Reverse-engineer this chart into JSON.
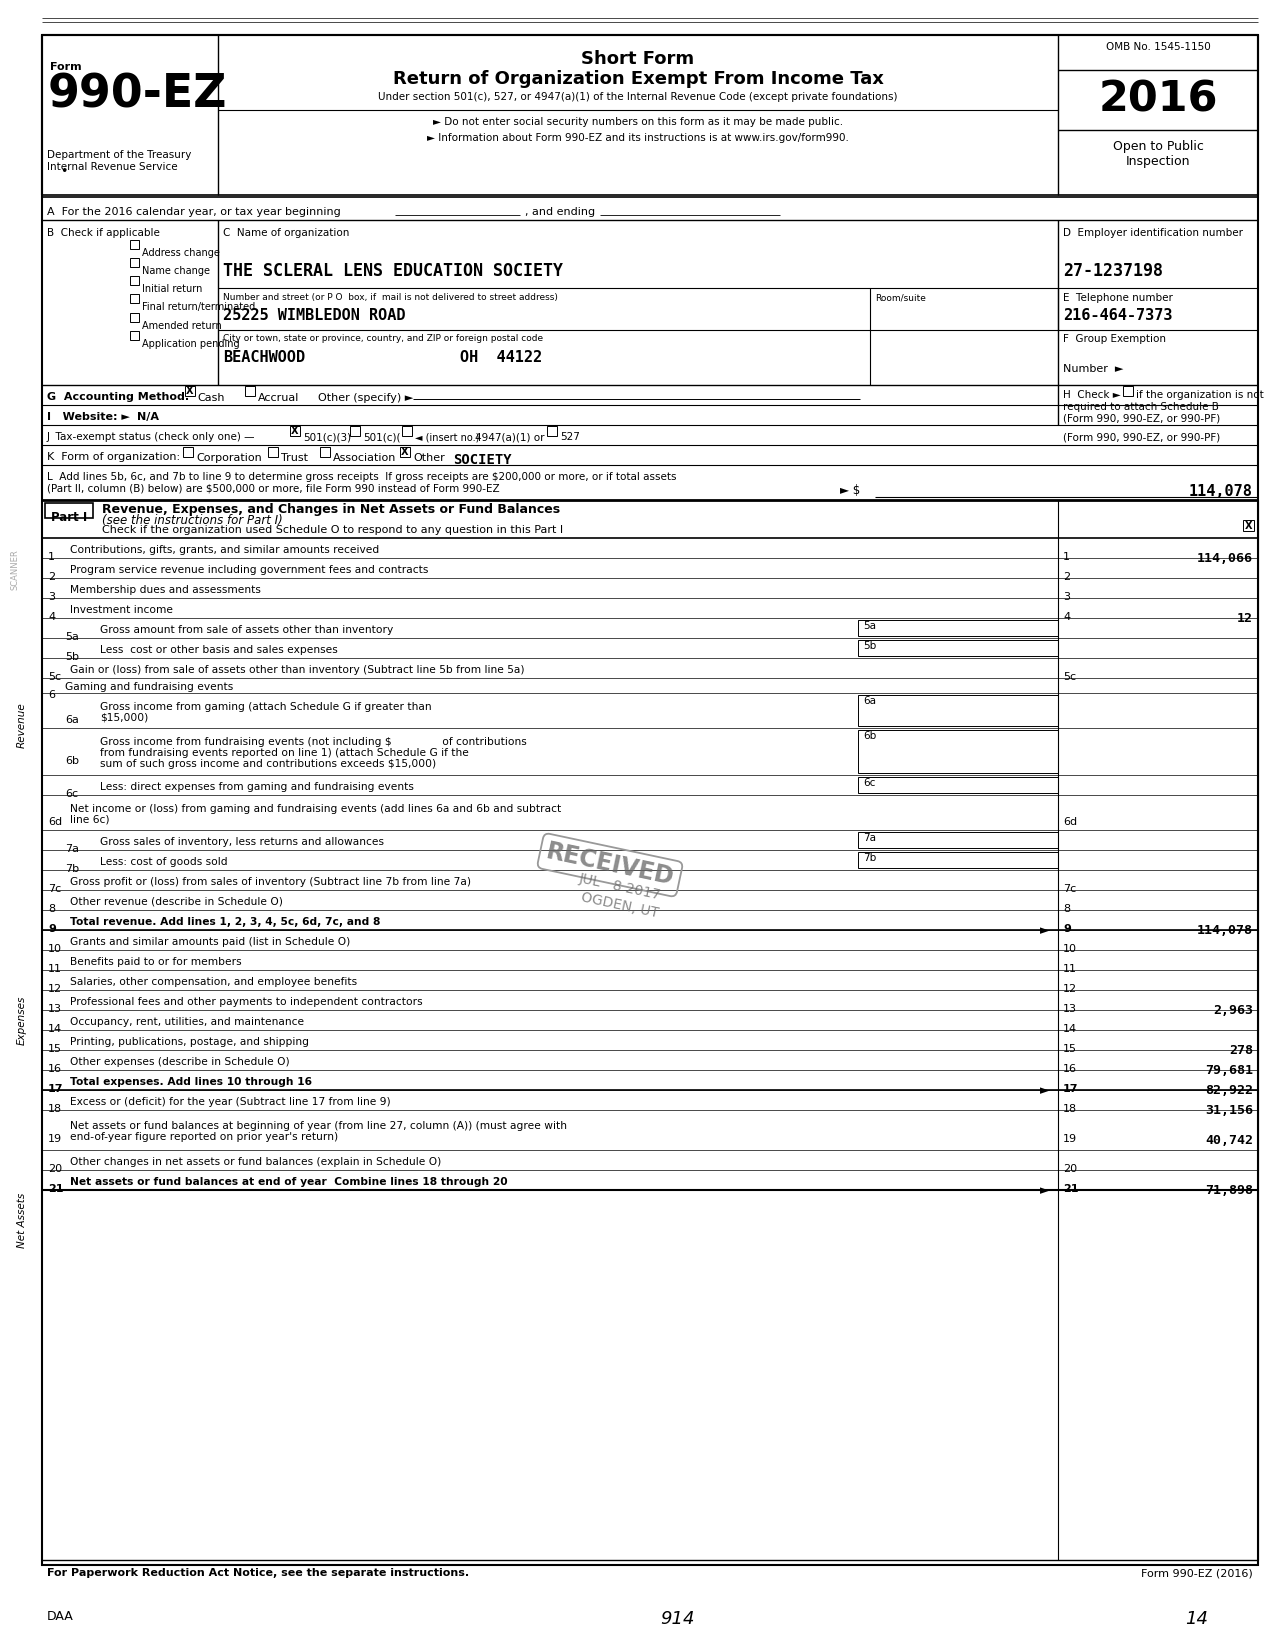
{
  "bg_color": "#ffffff",
  "omb": "OMB No. 1545-1150",
  "year": "2016",
  "org_name": "THE SCLERAL LENS EDUCATION SOCIETY",
  "ein": "27-1237198",
  "street": "25225 WIMBLEDON ROAD",
  "phone": "216-464-7373",
  "city": "BEACHWOOD",
  "state_zip": "OH  44122",
  "checkboxes_B": [
    "Address change",
    "Name change",
    "Initial return",
    "Final return/terminated",
    "Amended return",
    "Application pending"
  ],
  "line_L_amount": "114,078",
  "lines": [
    {
      "num": "1",
      "text": "Contributions, gifts, grants, and similar amounts received",
      "value": "114,066",
      "bold": false,
      "sub": false,
      "right_num": false,
      "header": false,
      "arrow": false
    },
    {
      "num": "2",
      "text": "Program service revenue including government fees and contracts",
      "value": "",
      "bold": false,
      "sub": false,
      "right_num": false,
      "header": false,
      "arrow": false
    },
    {
      "num": "3",
      "text": "Membership dues and assessments",
      "value": "",
      "bold": false,
      "sub": false,
      "right_num": false,
      "header": false,
      "arrow": false
    },
    {
      "num": "4",
      "text": "Investment income",
      "value": "12",
      "bold": false,
      "sub": false,
      "right_num": false,
      "header": false,
      "arrow": false
    },
    {
      "num": "5a",
      "text": "Gross amount from sale of assets other than inventory",
      "value": "",
      "bold": false,
      "sub": true,
      "right_num": false,
      "header": false,
      "arrow": false
    },
    {
      "num": "5b",
      "text": "Less  cost or other basis and sales expenses",
      "value": "",
      "bold": false,
      "sub": true,
      "right_num": false,
      "header": false,
      "arrow": false
    },
    {
      "num": "5c",
      "text": "Gain or (loss) from sale of assets other than inventory (Subtract line 5b from line 5a)",
      "value": "",
      "bold": false,
      "sub": false,
      "right_num": true,
      "header": false,
      "arrow": false
    },
    {
      "num": "6",
      "text": "Gaming and fundraising events",
      "value": "",
      "bold": false,
      "sub": false,
      "right_num": false,
      "header": true,
      "arrow": false
    },
    {
      "num": "6a",
      "text": "Gross income from gaming (attach Schedule G if greater than\n$15,000)",
      "value": "",
      "bold": false,
      "sub": true,
      "right_num": false,
      "header": false,
      "arrow": false
    },
    {
      "num": "6b",
      "text": "Gross income from fundraising events (not including $               of contributions\nfrom fundraising events reported on line 1) (attach Schedule G if the\nsum of such gross income and contributions exceeds $15,000)",
      "value": "",
      "bold": false,
      "sub": true,
      "right_num": false,
      "header": false,
      "arrow": false
    },
    {
      "num": "6c",
      "text": "Less: direct expenses from gaming and fundraising events",
      "value": "",
      "bold": false,
      "sub": true,
      "right_num": false,
      "header": false,
      "arrow": false
    },
    {
      "num": "6d",
      "text": "Net income or (loss) from gaming and fundraising events (add lines 6a and 6b and subtract\nline 6c)",
      "value": "",
      "bold": false,
      "sub": false,
      "right_num": true,
      "header": false,
      "arrow": false
    },
    {
      "num": "7a",
      "text": "Gross sales of inventory, less returns and allowances",
      "value": "",
      "bold": false,
      "sub": true,
      "right_num": false,
      "header": false,
      "arrow": false
    },
    {
      "num": "7b",
      "text": "Less: cost of goods sold",
      "value": "",
      "bold": false,
      "sub": true,
      "right_num": false,
      "header": false,
      "arrow": false
    },
    {
      "num": "7c",
      "text": "Gross profit or (loss) from sales of inventory (Subtract line 7b from line 7a)",
      "value": "",
      "bold": false,
      "sub": false,
      "right_num": true,
      "header": false,
      "arrow": false
    },
    {
      "num": "8",
      "text": "Other revenue (describe in Schedule O)",
      "value": "",
      "bold": false,
      "sub": false,
      "right_num": false,
      "header": false,
      "arrow": false
    },
    {
      "num": "9",
      "text": "Total revenue. Add lines 1, 2, 3, 4, 5c, 6d, 7c, and 8",
      "value": "114,078",
      "bold": true,
      "sub": false,
      "right_num": false,
      "header": false,
      "arrow": true
    },
    {
      "num": "10",
      "text": "Grants and similar amounts paid (list in Schedule O)",
      "value": "",
      "bold": false,
      "sub": false,
      "right_num": false,
      "header": false,
      "arrow": false
    },
    {
      "num": "11",
      "text": "Benefits paid to or for members",
      "value": "",
      "bold": false,
      "sub": false,
      "right_num": false,
      "header": false,
      "arrow": false
    },
    {
      "num": "12",
      "text": "Salaries, other compensation, and employee benefits",
      "value": "",
      "bold": false,
      "sub": false,
      "right_num": false,
      "header": false,
      "arrow": false
    },
    {
      "num": "13",
      "text": "Professional fees and other payments to independent contractors",
      "value": "2,963",
      "bold": false,
      "sub": false,
      "right_num": false,
      "header": false,
      "arrow": false
    },
    {
      "num": "14",
      "text": "Occupancy, rent, utilities, and maintenance",
      "value": "",
      "bold": false,
      "sub": false,
      "right_num": false,
      "header": false,
      "arrow": false
    },
    {
      "num": "15",
      "text": "Printing, publications, postage, and shipping",
      "value": "278",
      "bold": false,
      "sub": false,
      "right_num": false,
      "header": false,
      "arrow": false
    },
    {
      "num": "16",
      "text": "Other expenses (describe in Schedule O)",
      "value": "79,681",
      "bold": false,
      "sub": false,
      "right_num": false,
      "header": false,
      "arrow": false
    },
    {
      "num": "17",
      "text": "Total expenses. Add lines 10 through 16",
      "value": "82,922",
      "bold": true,
      "sub": false,
      "right_num": false,
      "header": false,
      "arrow": true
    },
    {
      "num": "18",
      "text": "Excess or (deficit) for the year (Subtract line 17 from line 9)",
      "value": "31,156",
      "bold": false,
      "sub": false,
      "right_num": false,
      "header": false,
      "arrow": false
    },
    {
      "num": "19",
      "text": "Net assets or fund balances at beginning of year (from line 27, column (A)) (must agree with\nend-of-year figure reported on prior year's return)",
      "value": "40,742",
      "bold": false,
      "sub": false,
      "right_num": false,
      "header": false,
      "arrow": false
    },
    {
      "num": "20",
      "text": "Other changes in net assets or fund balances (explain in Schedule O)",
      "value": "",
      "bold": false,
      "sub": false,
      "right_num": false,
      "header": false,
      "arrow": false
    },
    {
      "num": "21",
      "text": "Net assets or fund balances at end of year  Combine lines 18 through 20",
      "value": "71,898",
      "bold": true,
      "sub": false,
      "right_num": false,
      "header": false,
      "arrow": true
    }
  ],
  "footer_left": "For Paperwork Reduction Act Notice, see the separate instructions.",
  "footer_right": "Form 990-EZ (2016)",
  "daa": "DAA",
  "page_num1": "914",
  "page_num2": "14"
}
